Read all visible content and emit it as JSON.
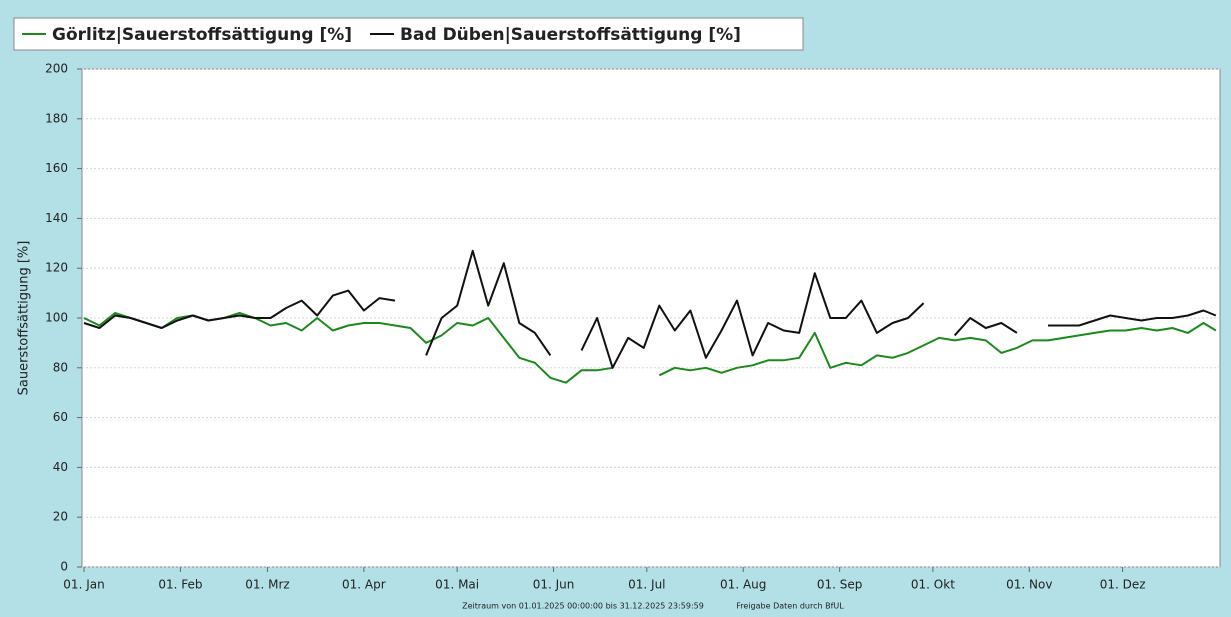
{
  "chart_data": {
    "type": "line",
    "y_label": "Sauerstoffsättigung [%]",
    "annotations": [
      "Zeitraum  von 01.01.2025  00:00:00  bis  31.12.2025  23:59:59",
      "Freigabe  Daten  durch  BfUL"
    ],
    "xlim": [
      0,
      365
    ],
    "xticks": [
      {
        "value": 0,
        "label": "01. Jan"
      },
      {
        "value": 31,
        "label": "01. Feb"
      },
      {
        "value": 59,
        "label": "01. Mrz"
      },
      {
        "value": 90,
        "label": "01. Apr"
      },
      {
        "value": 120,
        "label": "01. Mai"
      },
      {
        "value": 151,
        "label": "01. Jun"
      },
      {
        "value": 181,
        "label": "01. Jul"
      },
      {
        "value": 212,
        "label": "01. Aug"
      },
      {
        "value": 243,
        "label": "01. Sep"
      },
      {
        "value": 273,
        "label": "01. Okt"
      },
      {
        "value": 304,
        "label": "01. Nov"
      },
      {
        "value": 334,
        "label": "01. Dez"
      }
    ],
    "ylim": [
      0,
      200
    ],
    "yticks": [
      0,
      20,
      40,
      60,
      80,
      100,
      120,
      140,
      160,
      180,
      200
    ],
    "grid": true,
    "legend": "top-left",
    "x": [
      0,
      5,
      10,
      15,
      20,
      25,
      30,
      35,
      40,
      45,
      50,
      55,
      60,
      65,
      70,
      75,
      80,
      85,
      90,
      95,
      100,
      105,
      110,
      115,
      120,
      125,
      130,
      135,
      140,
      145,
      150,
      155,
      160,
      165,
      170,
      175,
      180,
      185,
      190,
      195,
      200,
      205,
      210,
      215,
      220,
      225,
      230,
      235,
      240,
      245,
      250,
      255,
      260,
      265,
      270,
      275,
      280,
      285,
      290,
      295,
      300,
      305,
      310,
      315,
      320,
      325,
      330,
      335,
      340,
      345,
      350,
      355,
      360,
      364
    ],
    "series": [
      {
        "name": "Görlitz|Sauerstoffsättigung [%]",
        "color": "#1a8a1a",
        "values": [
          100,
          97,
          102,
          100,
          98,
          96,
          100,
          101,
          99,
          100,
          102,
          100,
          97,
          98,
          95,
          100,
          95,
          97,
          98,
          98,
          97,
          96,
          90,
          93,
          98,
          97,
          100,
          92,
          84,
          82,
          76,
          74,
          79,
          79,
          80,
          null,
          null,
          77,
          80,
          79,
          80,
          78,
          80,
          81,
          83,
          83,
          84,
          94,
          80,
          82,
          81,
          85,
          84,
          86,
          89,
          92,
          91,
          92,
          91,
          86,
          88,
          91,
          91,
          92,
          93,
          94,
          95,
          95,
          96,
          95,
          96,
          94,
          98,
          95
        ]
      },
      {
        "name": "Bad Düben|Sauerstoffsättigung [%]",
        "color": "#111111",
        "values": [
          98,
          96,
          101,
          100,
          98,
          96,
          99,
          101,
          99,
          100,
          101,
          100,
          100,
          104,
          107,
          101,
          109,
          111,
          103,
          108,
          107,
          null,
          85,
          100,
          105,
          127,
          105,
          122,
          98,
          94,
          85,
          null,
          87,
          100,
          80,
          92,
          88,
          105,
          95,
          103,
          84,
          95,
          107,
          85,
          98,
          95,
          94,
          118,
          100,
          100,
          107,
          94,
          98,
          100,
          106,
          null,
          93,
          100,
          96,
          98,
          94,
          null,
          97,
          97,
          97,
          99,
          101,
          100,
          99,
          100,
          100,
          101,
          103,
          101
        ]
      }
    ]
  }
}
